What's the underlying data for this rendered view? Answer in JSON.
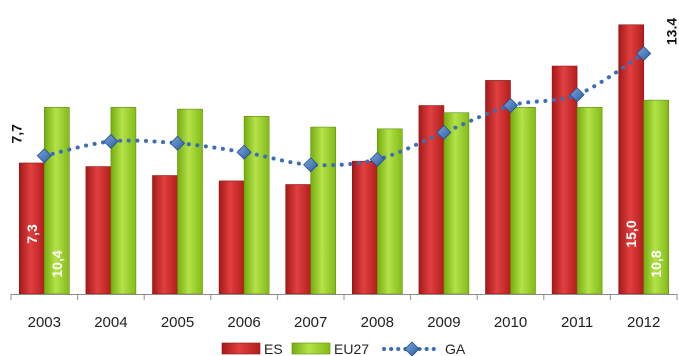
{
  "chart_data": {
    "type": "bar",
    "categories": [
      "2003",
      "2004",
      "2005",
      "2006",
      "2007",
      "2008",
      "2009",
      "2010",
      "2011",
      "2012"
    ],
    "series": [
      {
        "name": "ES",
        "kind": "bar",
        "color": "#d23232",
        "values": [
          7.3,
          7.1,
          6.6,
          6.3,
          6.1,
          7.4,
          10.5,
          11.9,
          12.7,
          15.0
        ]
      },
      {
        "name": "EU27",
        "kind": "bar",
        "color": "#9bd12a",
        "values": [
          10.4,
          10.4,
          10.3,
          9.9,
          9.3,
          9.2,
          10.1,
          10.4,
          10.4,
          10.8
        ]
      },
      {
        "name": "GA",
        "kind": "line",
        "color": "#3b6eb4",
        "values": [
          7.7,
          8.5,
          8.4,
          7.9,
          7.2,
          7.5,
          9.0,
          10.5,
          11.1,
          13.4
        ]
      }
    ],
    "data_labels": [
      {
        "series": "ES",
        "index": 0,
        "text": "7,3",
        "color": "#ffffff"
      },
      {
        "series": "EU27",
        "index": 0,
        "text": "10,4",
        "color": "#ffffff"
      },
      {
        "series": "GA",
        "index": 0,
        "text": "7,7",
        "color": "#111111"
      },
      {
        "series": "ES",
        "index": 9,
        "text": "15,0",
        "color": "#ffffff"
      },
      {
        "series": "EU27",
        "index": 9,
        "text": "10,8",
        "color": "#ffffff"
      },
      {
        "series": "GA",
        "index": 9,
        "text": "13.4",
        "color": "#111111"
      }
    ],
    "ylim": [
      0,
      15.6
    ],
    "grid": false,
    "legend": "bottom",
    "title": "",
    "xlabel": "",
    "ylabel": ""
  }
}
